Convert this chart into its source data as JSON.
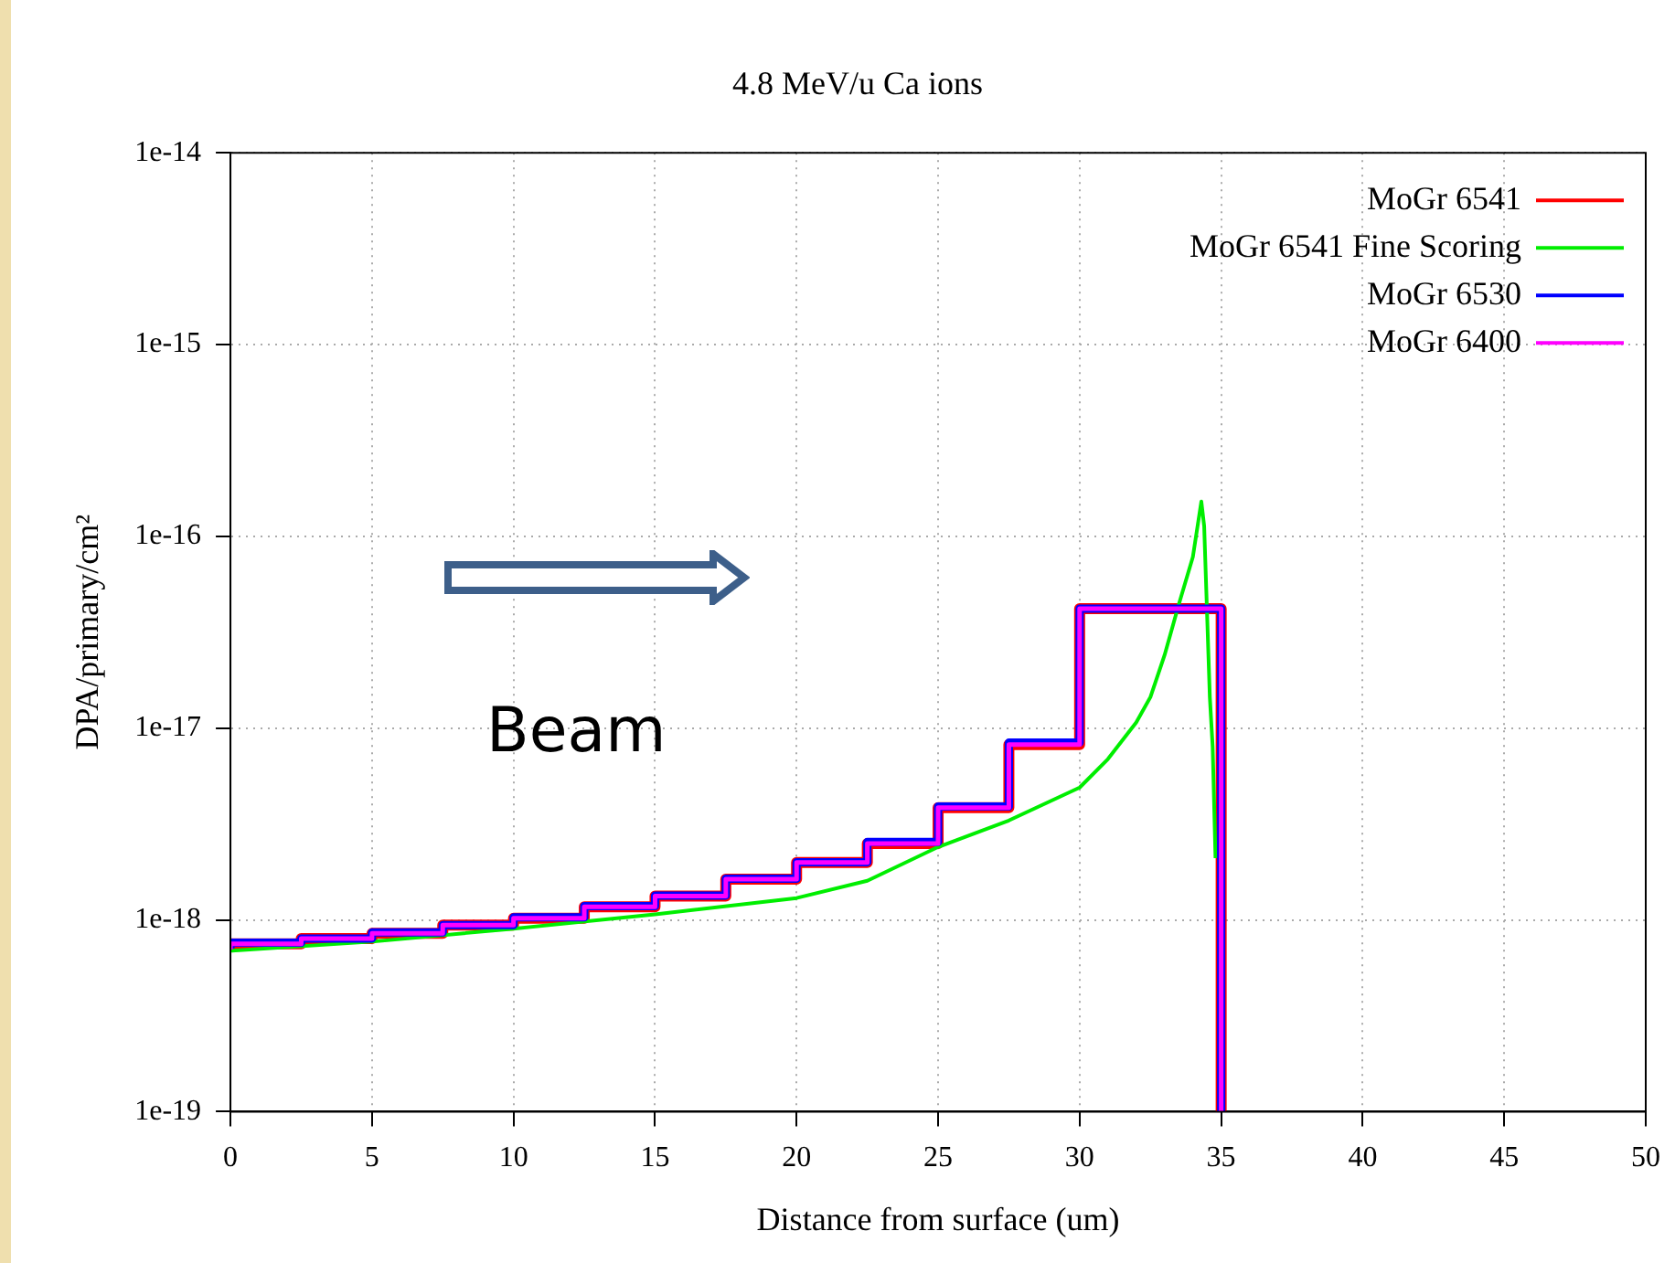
{
  "chart_data": {
    "type": "step",
    "title": "4.8 MeV/u Ca ions",
    "xlabel": "Distance from surface (um)",
    "ylabel": "DPA/primary/cm²",
    "log": "y",
    "grid": true,
    "legend": "top right",
    "marker": "none",
    "line_style": "solid",
    "xlim": [
      0,
      50
    ],
    "xticks": [
      0,
      5,
      10,
      15,
      20,
      25,
      30,
      35,
      40,
      45,
      50
    ],
    "ylim": [
      1e-19,
      1e-14
    ],
    "yticks": [
      {
        "value": 1e-19,
        "label": "1e-19"
      },
      {
        "value": 1e-18,
        "label": "1e-18"
      },
      {
        "value": 1e-17,
        "label": "1e-17"
      },
      {
        "value": 1e-16,
        "label": "1e-16"
      },
      {
        "value": 1e-15,
        "label": "1e-15"
      },
      {
        "value": 1e-14,
        "label": "1e-14"
      }
    ],
    "annotations": [
      "Beam"
    ],
    "series": [
      {
        "name": "MoGr 6541",
        "color": "#ff0000",
        "x": [
          0,
          2.5,
          5,
          7.5,
          10,
          12.5,
          15,
          17.5,
          20,
          22.5,
          25,
          27.5,
          30,
          32.5,
          35,
          35
        ],
        "values": [
          7e-19,
          7.5e-19,
          8e-19,
          8.5e-19,
          9.4e-19,
          1.02e-18,
          1.17e-18,
          1.33e-18,
          1.63e-18,
          1.99e-18,
          2.5e-18,
          3.85e-18,
          8.2e-18,
          4.2e-17,
          4.2e-17,
          1e-19
        ]
      },
      {
        "name": "MoGr 6541 Fine Scoring",
        "type": "line",
        "color": "#00ee00",
        "x": [
          0,
          5,
          10,
          15,
          20,
          22.5,
          25,
          27.5,
          30,
          31,
          32,
          32.5,
          33,
          33.5,
          34,
          34.3,
          34.4,
          34.6,
          34.7,
          34.8
        ],
        "values": [
          6.9e-19,
          7.7e-19,
          9e-19,
          1.07e-18,
          1.3e-18,
          1.6e-18,
          2.4e-18,
          3.3e-18,
          4.9e-18,
          6.9e-18,
          1.07e-17,
          1.45e-17,
          2.4e-17,
          4.4e-17,
          7.8e-17,
          1.52e-16,
          1.13e-16,
          1.45e-17,
          8e-18,
          2.1e-18
        ]
      },
      {
        "name": "MoGr 6530",
        "color": "#0000ff",
        "x": [
          0,
          2.5,
          5,
          7.5,
          10,
          12.5,
          15,
          17.5,
          20,
          22.5,
          25,
          27.5,
          30,
          32.5,
          35,
          35
        ],
        "values": [
          7.1e-19,
          7.6e-19,
          8e-19,
          8.6e-19,
          9.4e-19,
          1.03e-18,
          1.18e-18,
          1.34e-18,
          1.64e-18,
          2e-18,
          2.55e-18,
          3.9e-18,
          8.4e-18,
          4.2e-17,
          4.2e-17,
          1e-19
        ]
      },
      {
        "name": "MoGr 6400",
        "color": "#ff00ff",
        "x": [
          0,
          2.5,
          5,
          7.5,
          10,
          12.5,
          15,
          17.5,
          20,
          22.5,
          25,
          27.5,
          30,
          32.5,
          35,
          35
        ],
        "values": [
          7e-19,
          7.5e-19,
          8e-19,
          8.5e-19,
          9.4e-19,
          1.02e-18,
          1.17e-18,
          1.33e-18,
          1.63e-18,
          1.99e-18,
          2.5e-18,
          3.85e-18,
          8.2e-18,
          4.2e-17,
          4.2e-17,
          1e-19
        ]
      }
    ]
  }
}
